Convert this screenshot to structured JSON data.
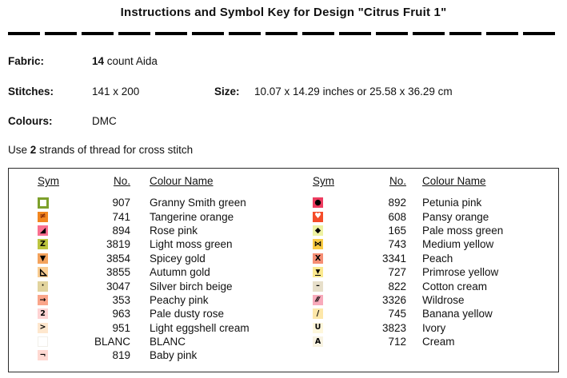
{
  "title": "Instructions and Symbol Key for Design \"Citrus Fruit 1\"",
  "info": {
    "fabric_label": "Fabric:",
    "fabric_count": "14",
    "fabric_rest": " count Aida",
    "stitches_label": "Stitches:",
    "stitches_value": "141 x 200",
    "size_label": "Size:",
    "size_value": "10.07 x 14.29 inches or 25.58 x 36.29 cm",
    "colours_label": "Colours:",
    "colours_value": "DMC",
    "strands_prefix": "Use ",
    "strands_count": "2",
    "strands_suffix": " strands of thread for cross stitch"
  },
  "table": {
    "headers": {
      "sym": "Sym",
      "no": "No.",
      "name": "Colour Name"
    },
    "left_rows": [
      {
        "no": "907",
        "name": "Granny Smith green",
        "icon": "open-square-icon",
        "kind": "outline",
        "bg": "#ffffff",
        "border": "#7da02b"
      },
      {
        "no": "741",
        "name": "Tangerine orange",
        "icon": "not-equal-icon",
        "glyph": "≠",
        "bg": "#f2861f",
        "fg": "#7a2004"
      },
      {
        "no": "894",
        "name": "Rose pink",
        "icon": "filled-triangle-icon",
        "glyph": "◢",
        "bg": "#fa7090"
      },
      {
        "no": "3819",
        "name": "Light moss green",
        "icon": "letter-z-icon",
        "glyph": "Z",
        "bg": "#bdc53f"
      },
      {
        "no": "3854",
        "name": "Spicey gold",
        "icon": "down-triangle-icon",
        "glyph": "▼",
        "bg": "#f4a35d"
      },
      {
        "no": "3855",
        "name": "Autumn gold",
        "icon": "outline-triangle-icon",
        "kind": "triangle-outline",
        "bg": "#facd92"
      },
      {
        "no": "3047",
        "name": "Silver birch beige",
        "icon": "dot-icon",
        "glyph": "·",
        "bg": "#e2d49e"
      },
      {
        "no": "353",
        "name": "Peachy pink",
        "icon": "right-arrow-icon",
        "glyph": "→",
        "bg": "#faa58a"
      },
      {
        "no": "963",
        "name": "Pale dusty rose",
        "icon": "digit-2-icon",
        "glyph": "2",
        "bg": "#ffd3d3"
      },
      {
        "no": "951",
        "name": "Light eggshell cream",
        "icon": "greater-than-icon",
        "glyph": ">",
        "bg": "#fee7ce"
      },
      {
        "no": "BLANC",
        "name": "BLANC",
        "icon": "blank-swatch-icon",
        "kind": "blank",
        "bg": "#ffffff"
      },
      {
        "no": "819",
        "name": "Baby pink",
        "icon": "corner-bracket-icon",
        "glyph": "¬",
        "bg": "#ffd9d2"
      }
    ],
    "right_rows": [
      {
        "no": "892",
        "name": "Petunia pink",
        "icon": "filled-circle-icon",
        "glyph": "●",
        "bg": "#ee3d60"
      },
      {
        "no": "608",
        "name": "Pansy orange",
        "icon": "heart-icon",
        "glyph": "♥",
        "bg": "#f54d2a",
        "fg": "#ffffff"
      },
      {
        "no": "165",
        "name": "Pale moss green",
        "icon": "diamond-icon",
        "glyph": "◆",
        "bg": "#eef2a2"
      },
      {
        "no": "743",
        "name": "Medium yellow",
        "icon": "bowtie-icon",
        "glyph": "⋈",
        "bg": "#facc44"
      },
      {
        "no": "3341",
        "name": "Peach",
        "icon": "letter-x-icon",
        "glyph": "X",
        "bg": "#f68e74"
      },
      {
        "no": "727",
        "name": "Primrose yellow",
        "icon": "triangle-bar-icon",
        "kind": "triangle-underline",
        "glyph": "▼",
        "bg": "#fbe98f"
      },
      {
        "no": "822",
        "name": "Cotton cream",
        "icon": "dash-icon",
        "glyph": "–",
        "bg": "#e7dfca"
      },
      {
        "no": "3326",
        "name": "Wildrose",
        "icon": "triple-slash-icon",
        "kind": "slashes",
        "glyph": "///",
        "bg": "#f8aabb"
      },
      {
        "no": "745",
        "name": "Banana yellow",
        "icon": "slash-icon",
        "glyph": "/",
        "bg": "#fde7a9"
      },
      {
        "no": "3823",
        "name": "Ivory",
        "icon": "letter-u-icon",
        "glyph": "U",
        "bg": "#fef7dc"
      },
      {
        "no": "712",
        "name": "Cream",
        "icon": "letter-a-icon",
        "glyph": "A",
        "bg": "#f8f3e2"
      }
    ]
  }
}
